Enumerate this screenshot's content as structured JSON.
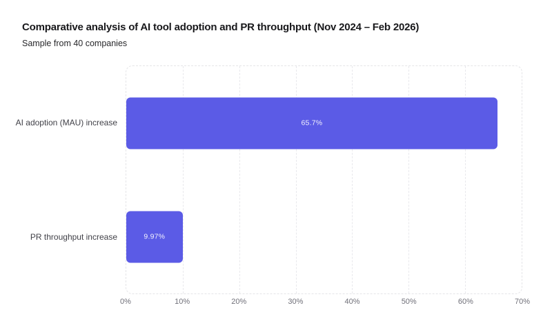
{
  "chart_data": {
    "type": "bar",
    "orientation": "horizontal",
    "title": "Comparative analysis of AI tool adoption and PR throughput (Nov 2024 – Feb 2026)",
    "subtitle": "Sample from 40 companies",
    "categories": [
      "AI adoption (MAU) increase",
      "PR throughput increase"
    ],
    "values": [
      65.7,
      9.97
    ],
    "value_labels": [
      "65.7%",
      "9.97%"
    ],
    "xlabel": "",
    "ylabel": "",
    "xlim": [
      0,
      70
    ],
    "x_ticks": [
      "0%",
      "10%",
      "20%",
      "30%",
      "40%",
      "50%",
      "60%",
      "70%"
    ],
    "grid": "vertical dashed gridlines, dashed rounded plot border",
    "legend": "none",
    "colors": {
      "bar": "#5b5be6",
      "bar_label": "#f2f1fd",
      "grid": "#e8e8ec",
      "title_text": "#18181b",
      "subtitle_text": "#27272a",
      "category_text": "#3f3f46",
      "tick_text": "#6f6f78",
      "background": "#ffffff"
    }
  }
}
